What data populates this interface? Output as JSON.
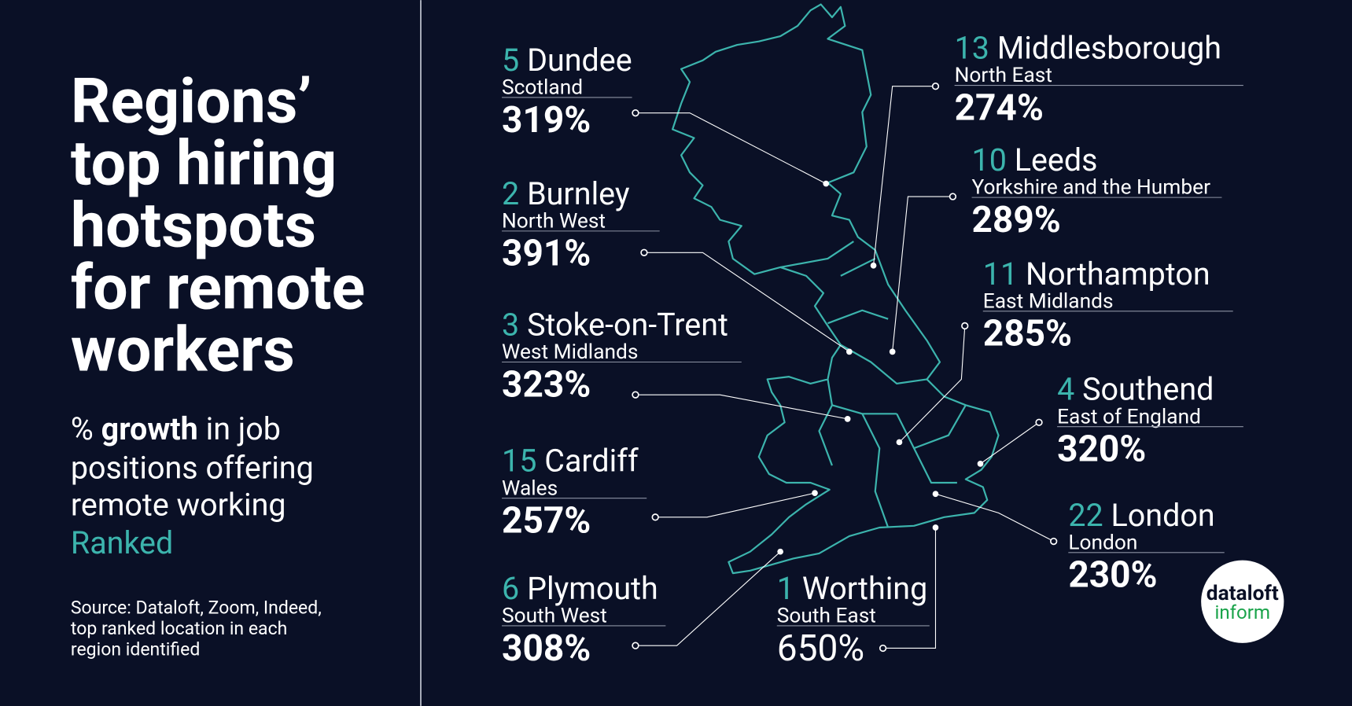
{
  "title": [
    "Regions’",
    "top hiring",
    "hotspots",
    "for remote",
    "workers"
  ],
  "subtitle": {
    "prefix": "%",
    "bold": "growth",
    "rest": [
      "in job",
      "positions offering",
      "remote working"
    ],
    "emphasis": "Ranked"
  },
  "source": [
    "Source: Dataloft, Zoom, Indeed,",
    "top ranked location in each",
    "region identified"
  ],
  "logo": {
    "top": "dataloft",
    "bottom": "inform"
  },
  "locations": [
    {
      "rank": "5",
      "city": "Dundee",
      "region": "Scotland",
      "growth": "319%"
    },
    {
      "rank": "2",
      "city": "Burnley",
      "region": "North West",
      "growth": "391%"
    },
    {
      "rank": "3",
      "city": "Stoke-on-Trent",
      "region": "West Midlands",
      "growth": "323%"
    },
    {
      "rank": "15",
      "city": "Cardiff",
      "region": "Wales",
      "growth": "257%"
    },
    {
      "rank": "6",
      "city": "Plymouth",
      "region": "South West",
      "growth": "308%"
    },
    {
      "rank": "1",
      "city": "Worthing",
      "region": "South East",
      "growth": "650%"
    },
    {
      "rank": "13",
      "city": "Middlesborough",
      "region": "North East",
      "growth": "274%"
    },
    {
      "rank": "10",
      "city": "Leeds",
      "region": "Yorkshire and the Humber",
      "growth": "289%"
    },
    {
      "rank": "11",
      "city": "Northampton",
      "region": "East Midlands",
      "growth": "285%"
    },
    {
      "rank": "4",
      "city": "Southend",
      "region": "East of England",
      "growth": "320%"
    },
    {
      "rank": "22",
      "city": "London",
      "region": "London",
      "growth": "230%"
    }
  ]
}
